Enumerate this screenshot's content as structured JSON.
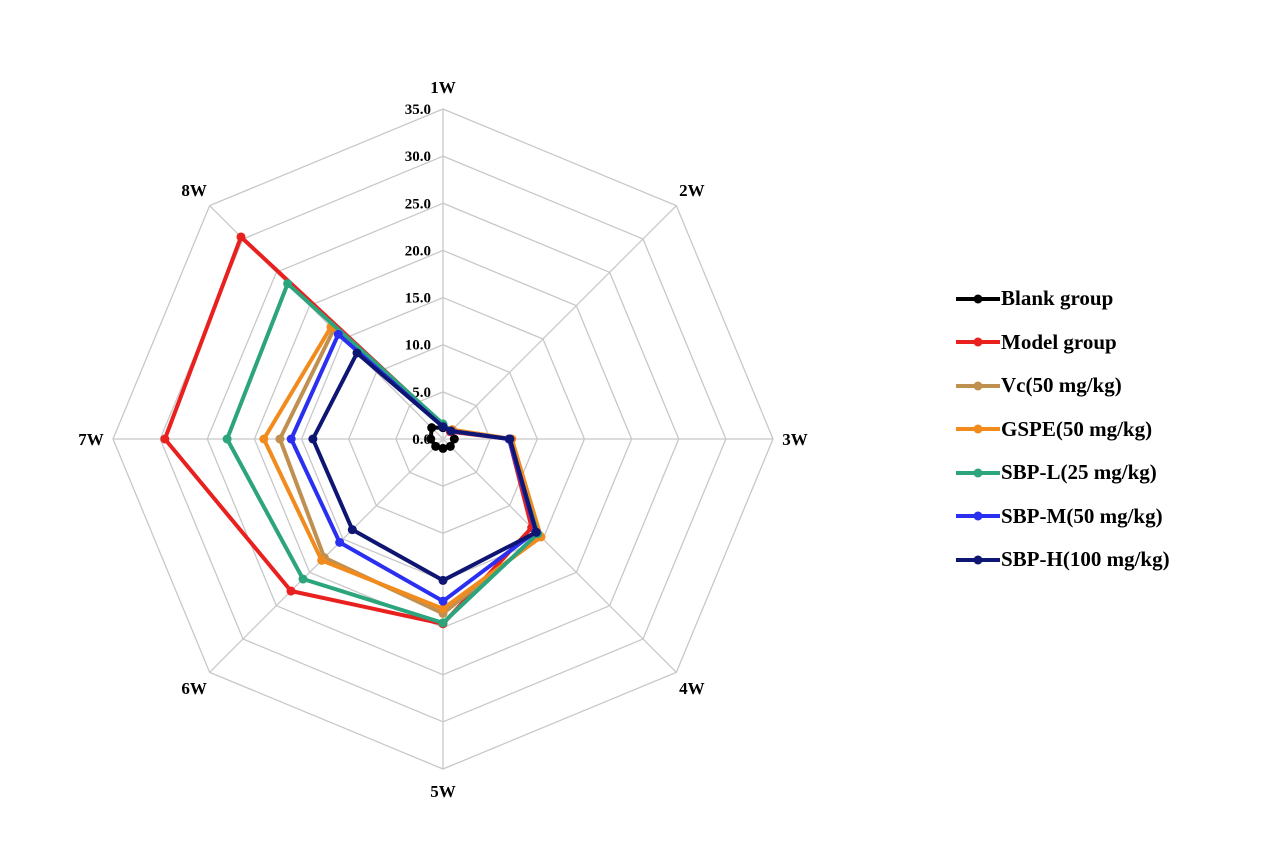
{
  "chart_data": {
    "type": "radar",
    "title": "",
    "axes": [
      "1W",
      "2W",
      "3W",
      "4W",
      "5W",
      "6W",
      "7W",
      "8W"
    ],
    "radial_range": [
      0,
      35
    ],
    "radial_ticks": [
      "0.0",
      "5.0",
      "10.0",
      "15.0",
      "20.0",
      "25.0",
      "30.0",
      "35.0"
    ],
    "grid": true,
    "legend_position": "right",
    "series": [
      {
        "name": "Blank group",
        "color": "#000000",
        "values": [
          1.2,
          1.2,
          1.2,
          1.1,
          1.0,
          1.1,
          1.3,
          1.7
        ]
      },
      {
        "name": "Model group",
        "color": "#e8211f",
        "values": [
          1.5,
          1.1,
          7.0,
          13.3,
          19.6,
          22.8,
          29.5,
          30.3
        ]
      },
      {
        "name": "Vc(50 mg/kg)",
        "color": "#c09050",
        "values": [
          1.5,
          1.3,
          7.2,
          14.5,
          18.5,
          17.8,
          17.3,
          16.4
        ]
      },
      {
        "name": "GSPE(50 mg/kg)",
        "color": "#f28b1e",
        "values": [
          1.4,
          1.4,
          7.3,
          14.7,
          18.0,
          18.2,
          19.0,
          16.8
        ]
      },
      {
        "name": "SBP-L(25 mg/kg)",
        "color": "#2ca57c",
        "values": [
          1.6,
          1.2,
          7.0,
          14.2,
          19.5,
          21.0,
          22.9,
          23.3
        ]
      },
      {
        "name": "SBP-M(50 mg/kg)",
        "color": "#2a2ff0",
        "values": [
          1.3,
          1.2,
          7.0,
          13.9,
          17.2,
          15.5,
          16.1,
          15.7
        ]
      },
      {
        "name": "SBP-H(100 mg/kg)",
        "color": "#0f1573",
        "values": [
          1.3,
          1.2,
          7.1,
          14.0,
          15.0,
          13.6,
          13.8,
          12.9
        ]
      }
    ]
  }
}
